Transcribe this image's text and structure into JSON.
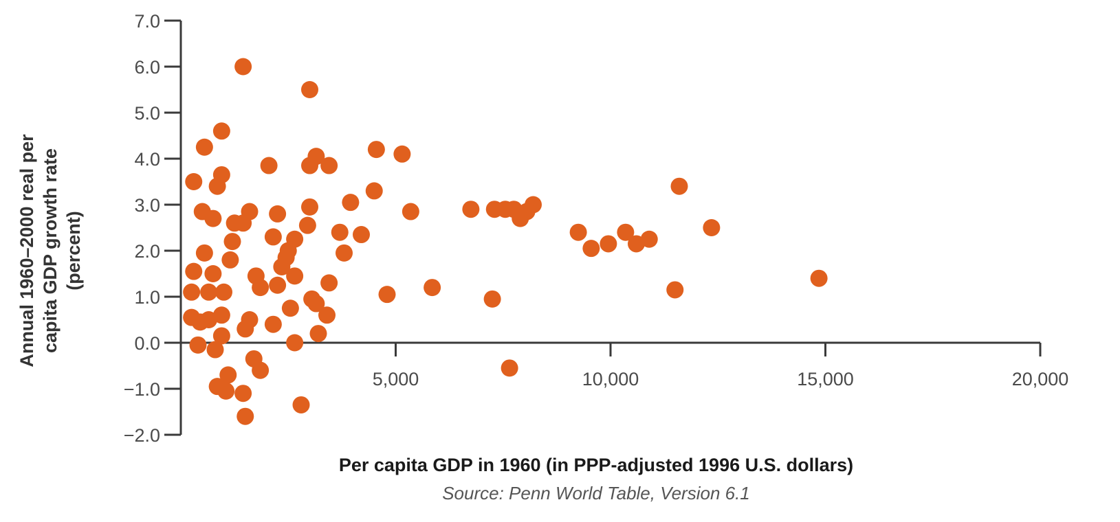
{
  "chart_data": {
    "type": "scatter",
    "xlabel": "Per capita GDP in 1960 (in PPP-adjusted 1996 U.S. dollars)",
    "ylabel_lines": [
      "Annual 1960–2000 real per",
      "capita GDP growth rate",
      "(percent)"
    ],
    "source": "Source: Penn World Table, Version 6.1",
    "xlim": [
      0,
      20000
    ],
    "ylim": [
      -2.0,
      7.0
    ],
    "x_ticks": [
      5000,
      10000,
      15000,
      20000
    ],
    "x_tick_labels": [
      "5,000",
      "10,000",
      "15,000",
      "20,000"
    ],
    "y_ticks": [
      -2,
      -1,
      0,
      1,
      2,
      3,
      4,
      5,
      6,
      7
    ],
    "y_tick_labels": [
      "−2.0",
      "−1.0",
      "0.0",
      "1.0",
      "2.0",
      "3.0",
      "4.0",
      "5.0",
      "6.0",
      "7.0"
    ],
    "grid": false,
    "marker_color": "#e0601e",
    "axis_color": "#3a3a3a",
    "points": [
      {
        "x": 1450,
        "y": 6.0
      },
      {
        "x": 3000,
        "y": 5.5
      },
      {
        "x": 950,
        "y": 4.6
      },
      {
        "x": 550,
        "y": 4.25
      },
      {
        "x": 4550,
        "y": 4.2
      },
      {
        "x": 5150,
        "y": 4.1
      },
      {
        "x": 3150,
        "y": 4.05
      },
      {
        "x": 2050,
        "y": 3.85
      },
      {
        "x": 3000,
        "y": 3.85
      },
      {
        "x": 3450,
        "y": 3.85
      },
      {
        "x": 950,
        "y": 3.65
      },
      {
        "x": 300,
        "y": 3.5
      },
      {
        "x": 850,
        "y": 3.4
      },
      {
        "x": 11600,
        "y": 3.4
      },
      {
        "x": 4500,
        "y": 3.3
      },
      {
        "x": 3950,
        "y": 3.05
      },
      {
        "x": 8200,
        "y": 3.0
      },
      {
        "x": 3000,
        "y": 2.95
      },
      {
        "x": 6750,
        "y": 2.9
      },
      {
        "x": 7300,
        "y": 2.9
      },
      {
        "x": 7550,
        "y": 2.9
      },
      {
        "x": 7750,
        "y": 2.9
      },
      {
        "x": 8050,
        "y": 2.85
      },
      {
        "x": 500,
        "y": 2.85
      },
      {
        "x": 1600,
        "y": 2.85
      },
      {
        "x": 5350,
        "y": 2.85
      },
      {
        "x": 2250,
        "y": 2.8
      },
      {
        "x": 750,
        "y": 2.7
      },
      {
        "x": 7900,
        "y": 2.7
      },
      {
        "x": 1250,
        "y": 2.6
      },
      {
        "x": 1450,
        "y": 2.6
      },
      {
        "x": 2950,
        "y": 2.55
      },
      {
        "x": 12350,
        "y": 2.5
      },
      {
        "x": 9250,
        "y": 2.4
      },
      {
        "x": 10350,
        "y": 2.4
      },
      {
        "x": 3700,
        "y": 2.4
      },
      {
        "x": 4200,
        "y": 2.35
      },
      {
        "x": 2150,
        "y": 2.3
      },
      {
        "x": 2650,
        "y": 2.25
      },
      {
        "x": 10900,
        "y": 2.25
      },
      {
        "x": 1200,
        "y": 2.2
      },
      {
        "x": 10600,
        "y": 2.15
      },
      {
        "x": 9950,
        "y": 2.15
      },
      {
        "x": 9550,
        "y": 2.05
      },
      {
        "x": 2500,
        "y": 2.0
      },
      {
        "x": 550,
        "y": 1.95
      },
      {
        "x": 3800,
        "y": 1.95
      },
      {
        "x": 2450,
        "y": 1.85
      },
      {
        "x": 1150,
        "y": 1.8
      },
      {
        "x": 2350,
        "y": 1.65
      },
      {
        "x": 300,
        "y": 1.55
      },
      {
        "x": 750,
        "y": 1.5
      },
      {
        "x": 1750,
        "y": 1.45
      },
      {
        "x": 2650,
        "y": 1.45
      },
      {
        "x": 14850,
        "y": 1.4
      },
      {
        "x": 3450,
        "y": 1.3
      },
      {
        "x": 2250,
        "y": 1.25
      },
      {
        "x": 1850,
        "y": 1.2
      },
      {
        "x": 5850,
        "y": 1.2
      },
      {
        "x": 11500,
        "y": 1.15
      },
      {
        "x": 250,
        "y": 1.1
      },
      {
        "x": 650,
        "y": 1.1
      },
      {
        "x": 1000,
        "y": 1.1
      },
      {
        "x": 4800,
        "y": 1.05
      },
      {
        "x": 3050,
        "y": 0.95
      },
      {
        "x": 7250,
        "y": 0.95
      },
      {
        "x": 3150,
        "y": 0.85
      },
      {
        "x": 2550,
        "y": 0.75
      },
      {
        "x": 3400,
        "y": 0.6
      },
      {
        "x": 950,
        "y": 0.6
      },
      {
        "x": 250,
        "y": 0.55
      },
      {
        "x": 650,
        "y": 0.5
      },
      {
        "x": 1600,
        "y": 0.5
      },
      {
        "x": 450,
        "y": 0.45
      },
      {
        "x": 2150,
        "y": 0.4
      },
      {
        "x": 1500,
        "y": 0.3
      },
      {
        "x": 3200,
        "y": 0.2
      },
      {
        "x": 950,
        "y": 0.15
      },
      {
        "x": 400,
        "y": -0.05
      },
      {
        "x": 2650,
        "y": 0.0
      },
      {
        "x": 800,
        "y": -0.15
      },
      {
        "x": 1700,
        "y": -0.35
      },
      {
        "x": 1850,
        "y": -0.6
      },
      {
        "x": 7650,
        "y": -0.55
      },
      {
        "x": 1100,
        "y": -0.7
      },
      {
        "x": 850,
        "y": -0.95
      },
      {
        "x": 1050,
        "y": -1.05
      },
      {
        "x": 1450,
        "y": -1.1
      },
      {
        "x": 2800,
        "y": -1.35
      },
      {
        "x": 1500,
        "y": -1.6
      }
    ]
  }
}
